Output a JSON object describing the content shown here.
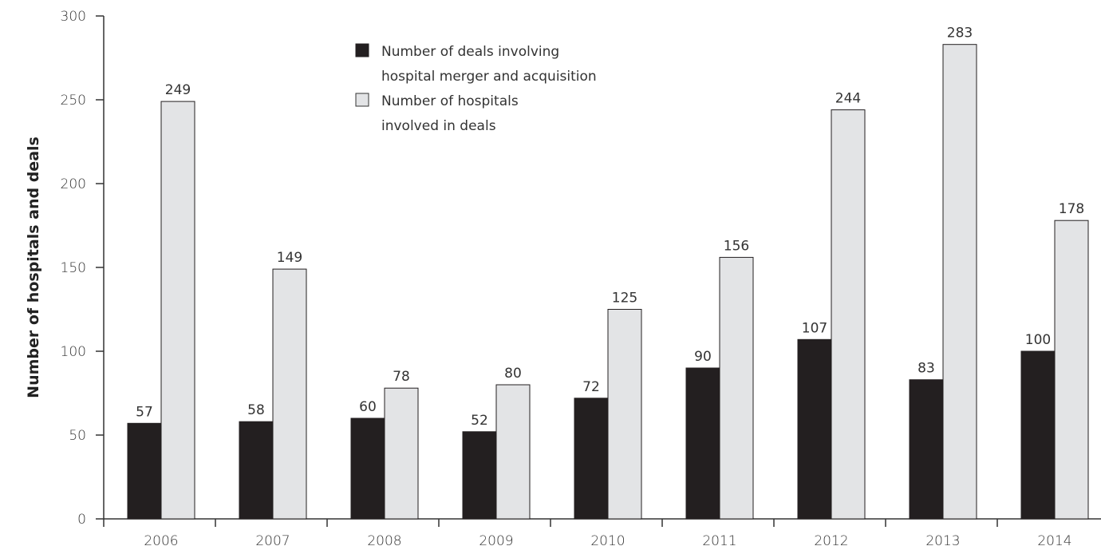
{
  "chart_data": {
    "type": "bar",
    "title": "",
    "xlabel": "",
    "ylabel": "Number of hospitals and deals",
    "ylim": [
      0,
      300
    ],
    "yticks": [
      "0",
      "50",
      "100",
      "150",
      "200",
      "250",
      "300"
    ],
    "categories": [
      "2006",
      "2007",
      "2008",
      "2009",
      "2010",
      "2011",
      "2012",
      "2013",
      "2014"
    ],
    "series": [
      {
        "name": "Number of deals involving hospital merger and acquisition",
        "name_lines": [
          "Number of deals involving",
          "hospital merger and acquisition"
        ],
        "color": "#231f20",
        "values": [
          57,
          58,
          60,
          52,
          72,
          90,
          107,
          83,
          100
        ]
      },
      {
        "name": "Number of hospitals involved in deals",
        "name_lines": [
          "Number of hospitals",
          "involved in deals"
        ],
        "color": "#e3e4e6",
        "values": [
          249,
          149,
          78,
          80,
          125,
          156,
          244,
          283,
          178
        ]
      }
    ],
    "grid": false,
    "legend_position": "top-center"
  }
}
